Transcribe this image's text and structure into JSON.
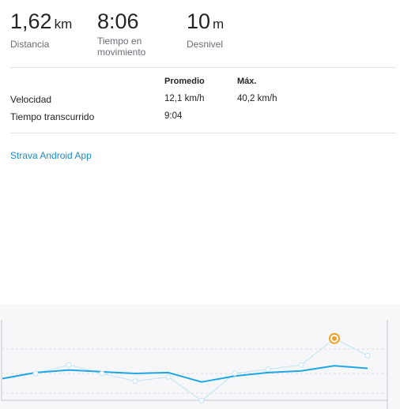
{
  "stats": {
    "distance": {
      "value": "1,62",
      "unit": "km",
      "label": "Distancia"
    },
    "moving_time": {
      "value": "8:06",
      "label": "Tiempo en movimiento"
    },
    "elevation": {
      "value": "10",
      "unit": "m",
      "label": "Desnivel"
    }
  },
  "table": {
    "headers": {
      "average": "Promedio",
      "max": "Máx."
    },
    "rows": [
      {
        "label": "Velocidad",
        "average": "12,1 km/h",
        "max": "40,2 km/h"
      },
      {
        "label": "Tiempo transcurrido",
        "average": "9:04",
        "max": ""
      }
    ]
  },
  "app_link": "Strava Android App",
  "chart_data": {
    "type": "line",
    "series": [
      {
        "values": [
          -0.6,
          0.1,
          0.4,
          0.2,
          0.0,
          0.1,
          -1.0,
          -0.3,
          0.1,
          0.3,
          0.9,
          0.6
        ]
      },
      {
        "values": [
          null,
          0.0,
          1.0,
          0.0,
          -0.9,
          -0.4,
          -3.2,
          0.0,
          0.5,
          1.0,
          4.1,
          2.1
        ],
        "highlight_index": 10
      }
    ],
    "colors": {
      "primary": "#1ea7e4",
      "secondary": "#bfe3f5",
      "highlight": "#f0a024"
    }
  }
}
